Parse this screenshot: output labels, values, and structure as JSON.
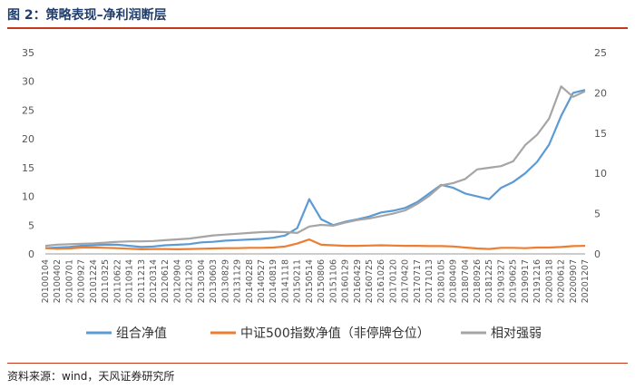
{
  "title": "图 2：策略表现–净利润断层",
  "source": "资料来源：wind，天风证券研究所",
  "chart_data": {
    "type": "line",
    "x": [
      "20100104",
      "20100402",
      "20100701",
      "20100927",
      "20101224",
      "20110325",
      "20110622",
      "20110914",
      "20111213",
      "20120314",
      "20120612",
      "20120904",
      "20121203",
      "20130304",
      "20130603",
      "20130829",
      "20131129",
      "20140228",
      "20140527",
      "20140819",
      "20141118",
      "20150211",
      "20150514",
      "20150806",
      "20151106",
      "20160129",
      "20160429",
      "20160725",
      "20161026",
      "20170120",
      "20170420",
      "20170717",
      "20171013",
      "20180105",
      "20180409",
      "20180704",
      "20180926",
      "20181225",
      "20190327",
      "20190625",
      "20190917",
      "20191216",
      "20200318",
      "20200612",
      "20200907",
      "20201207"
    ],
    "series": [
      {
        "name": "组合净值",
        "axis": "left",
        "color": "#5b9bd5",
        "values": [
          1.0,
          1.1,
          1.2,
          1.4,
          1.5,
          1.6,
          1.6,
          1.4,
          1.2,
          1.3,
          1.5,
          1.6,
          1.7,
          2.0,
          2.1,
          2.3,
          2.4,
          2.5,
          2.6,
          2.8,
          3.2,
          4.5,
          9.5,
          6.0,
          5.0,
          5.6,
          6.0,
          6.5,
          7.2,
          7.5,
          8.0,
          9.0,
          10.5,
          12.0,
          11.5,
          10.5,
          10.0,
          9.5,
          11.5,
          12.5,
          14.0,
          16.0,
          19.0,
          24.0,
          28.0,
          28.5
        ]
      },
      {
        "name": "中证500指数净值（非停牌仓位）",
        "axis": "left",
        "color": "#ed7d31",
        "values": [
          1.0,
          0.9,
          0.95,
          1.1,
          1.1,
          1.05,
          1.0,
          0.9,
          0.8,
          0.85,
          0.85,
          0.8,
          0.85,
          0.9,
          0.95,
          1.0,
          1.0,
          1.05,
          1.05,
          1.1,
          1.3,
          1.8,
          2.5,
          1.6,
          1.5,
          1.4,
          1.4,
          1.45,
          1.5,
          1.45,
          1.4,
          1.4,
          1.35,
          1.35,
          1.3,
          1.1,
          0.95,
          0.85,
          1.05,
          1.05,
          1.0,
          1.1,
          1.1,
          1.2,
          1.35,
          1.4
        ]
      },
      {
        "name": "相对强弱",
        "axis": "right",
        "color": "#a5a5a5",
        "values": [
          1.0,
          1.15,
          1.2,
          1.25,
          1.3,
          1.4,
          1.5,
          1.55,
          1.55,
          1.6,
          1.7,
          1.8,
          1.9,
          2.1,
          2.3,
          2.4,
          2.5,
          2.6,
          2.7,
          2.75,
          2.7,
          2.6,
          3.4,
          3.6,
          3.5,
          3.9,
          4.2,
          4.4,
          4.7,
          5.0,
          5.4,
          6.2,
          7.2,
          8.5,
          8.8,
          9.3,
          10.5,
          10.7,
          10.9,
          11.5,
          13.5,
          14.8,
          16.8,
          20.8,
          19.5,
          20.2
        ]
      }
    ],
    "ylim_left": [
      0,
      35
    ],
    "yticks_left": [
      "0",
      "5",
      "10",
      "15",
      "20",
      "25",
      "30",
      "35"
    ],
    "ylim_right": [
      0,
      25
    ],
    "yticks_right": [
      "0",
      "5",
      "10",
      "15",
      "20",
      "25"
    ],
    "legend_position": "bottom"
  }
}
